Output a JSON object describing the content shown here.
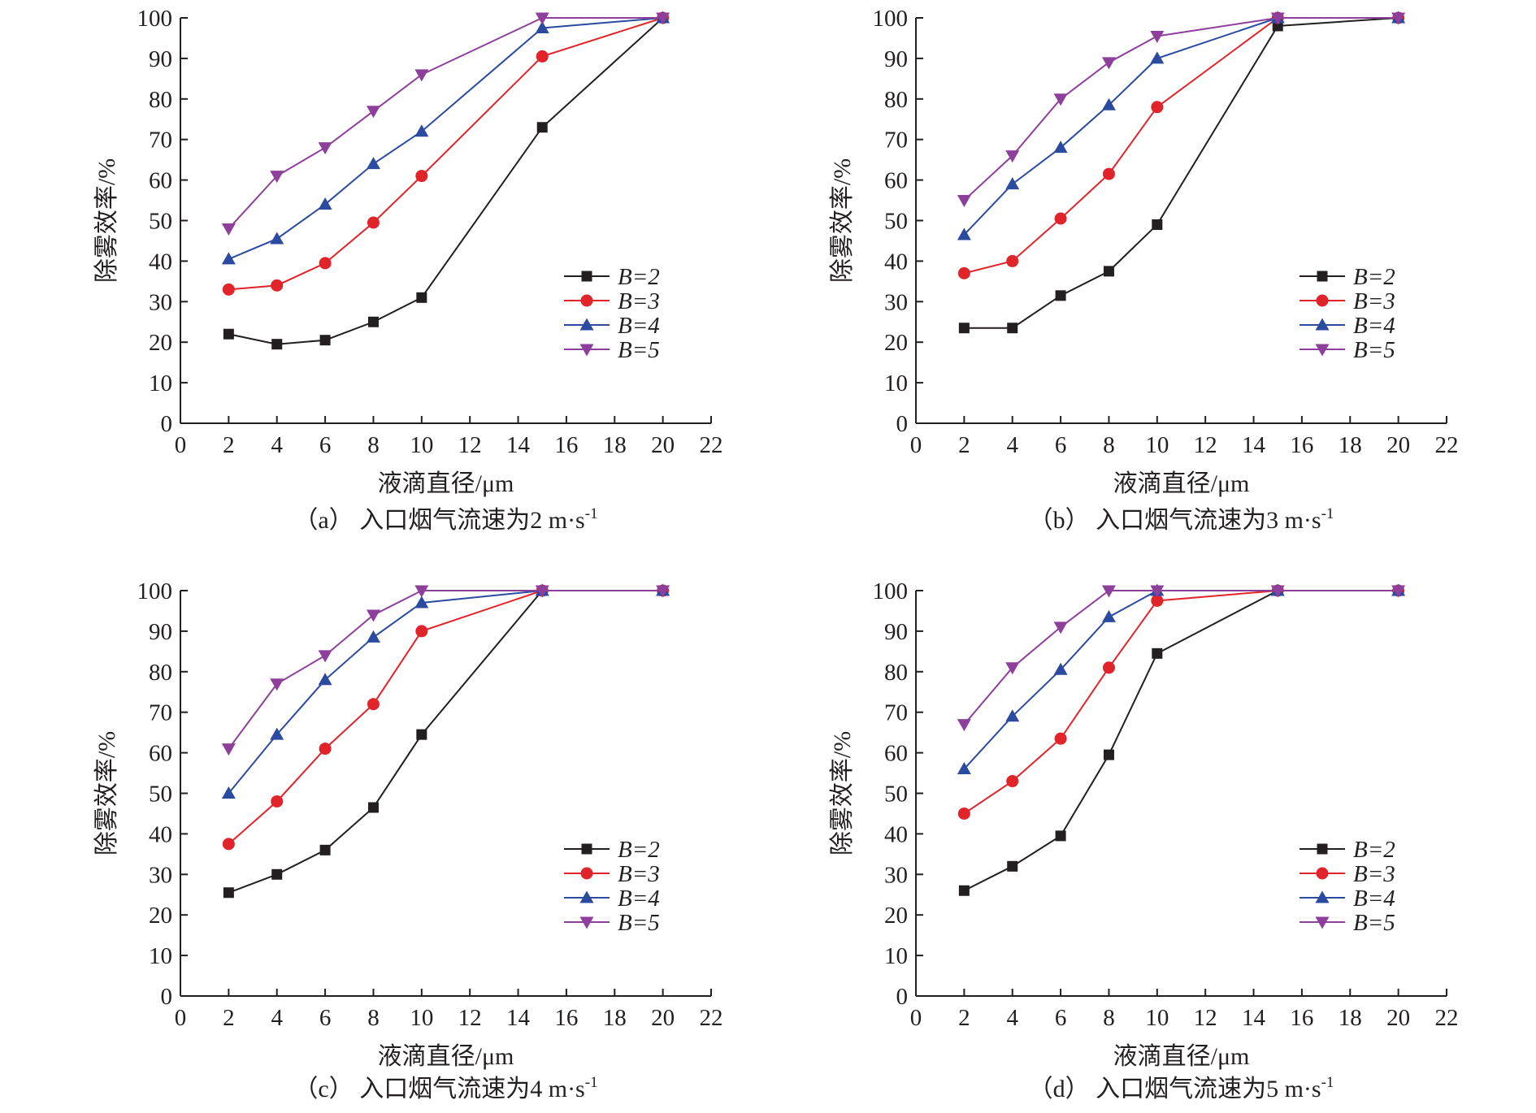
{
  "figure": {
    "panels": [
      {
        "caption": "（a） 入口烟气流速为2 m·s",
        "caption_sup": "-1",
        "chart_data": {
          "type": "line",
          "xlabel": "液滴直径/μm",
          "ylabel": "除雾效率/%",
          "xlim": [
            0,
            22
          ],
          "ylim": [
            0,
            100
          ],
          "xticks": [
            0,
            2,
            4,
            6,
            8,
            10,
            12,
            14,
            16,
            18,
            20,
            22
          ],
          "yticks": [
            0,
            10,
            20,
            30,
            40,
            50,
            60,
            70,
            80,
            90,
            100
          ],
          "grid": false,
          "legend_position": "right",
          "x": [
            2,
            4,
            6,
            8,
            10,
            15,
            20
          ],
          "series": [
            {
              "name": "B=2",
              "values": [
                22,
                19.5,
                20.5,
                25,
                31,
                73,
                100
              ],
              "color": "#231f20",
              "marker": "square"
            },
            {
              "name": "B=3",
              "values": [
                33,
                34,
                39.5,
                49.5,
                61,
                90.5,
                100
              ],
              "color": "#e1232a",
              "marker": "circle"
            },
            {
              "name": "B=4",
              "values": [
                40.5,
                45.5,
                54,
                64,
                72,
                97.5,
                100
              ],
              "color": "#2b4ba0",
              "marker": "triangle-up"
            },
            {
              "name": "B=5",
              "values": [
                48,
                61,
                68,
                77,
                86,
                100,
                100
              ],
              "color": "#8e3f9c",
              "marker": "triangle-down"
            }
          ]
        }
      },
      {
        "caption": "（b） 入口烟气流速为3 m·s",
        "caption_sup": "-1",
        "chart_data": {
          "type": "line",
          "xlabel": "液滴直径/μm",
          "ylabel": "除雾效率/%",
          "xlim": [
            0,
            22
          ],
          "ylim": [
            0,
            100
          ],
          "xticks": [
            0,
            2,
            4,
            6,
            8,
            10,
            12,
            14,
            16,
            18,
            20,
            22
          ],
          "yticks": [
            0,
            10,
            20,
            30,
            40,
            50,
            60,
            70,
            80,
            90,
            100
          ],
          "grid": false,
          "legend_position": "right",
          "x": [
            2,
            4,
            6,
            8,
            10,
            15,
            20
          ],
          "series": [
            {
              "name": "B=2",
              "values": [
                23.5,
                23.5,
                31.5,
                37.5,
                49,
                98,
                100
              ],
              "color": "#231f20",
              "marker": "square"
            },
            {
              "name": "B=3",
              "values": [
                37,
                40,
                50.5,
                61.5,
                78,
                100,
                100
              ],
              "color": "#e1232a",
              "marker": "circle"
            },
            {
              "name": "B=4",
              "values": [
                46.5,
                59,
                68,
                78.5,
                90,
                100,
                100
              ],
              "color": "#2b4ba0",
              "marker": "triangle-up"
            },
            {
              "name": "B=5",
              "values": [
                55,
                66,
                80,
                89,
                95.5,
                100,
                100
              ],
              "color": "#8e3f9c",
              "marker": "triangle-down"
            }
          ]
        }
      },
      {
        "caption": "（c） 入口烟气流速为4 m·s",
        "caption_sup": "-1",
        "chart_data": {
          "type": "line",
          "xlabel": "液滴直径/μm",
          "ylabel": "除雾效率/%",
          "xlim": [
            0,
            22
          ],
          "ylim": [
            0,
            100
          ],
          "xticks": [
            0,
            2,
            4,
            6,
            8,
            10,
            12,
            14,
            16,
            18,
            20,
            22
          ],
          "yticks": [
            0,
            10,
            20,
            30,
            40,
            50,
            60,
            70,
            80,
            90,
            100
          ],
          "grid": false,
          "legend_position": "right",
          "x": [
            2,
            4,
            6,
            8,
            10,
            15,
            20
          ],
          "series": [
            {
              "name": "B=2",
              "values": [
                25.5,
                30,
                36,
                46.5,
                64.5,
                100,
                100
              ],
              "color": "#231f20",
              "marker": "square"
            },
            {
              "name": "B=3",
              "values": [
                37.5,
                48,
                61,
                72,
                90,
                100,
                100
              ],
              "color": "#e1232a",
              "marker": "circle"
            },
            {
              "name": "B=4",
              "values": [
                50,
                64.5,
                78,
                88.5,
                97,
                100,
                100
              ],
              "color": "#2b4ba0",
              "marker": "triangle-up"
            },
            {
              "name": "B=5",
              "values": [
                61,
                77,
                84,
                94,
                100,
                100,
                100
              ],
              "color": "#8e3f9c",
              "marker": "triangle-down"
            }
          ]
        }
      },
      {
        "caption": "（d） 入口烟气流速为5 m·s",
        "caption_sup": "-1",
        "chart_data": {
          "type": "line",
          "xlabel": "液滴直径/μm",
          "ylabel": "除雾效率/%",
          "xlim": [
            0,
            22
          ],
          "ylim": [
            0,
            100
          ],
          "xticks": [
            0,
            2,
            4,
            6,
            8,
            10,
            12,
            14,
            16,
            18,
            20,
            22
          ],
          "yticks": [
            0,
            10,
            20,
            30,
            40,
            50,
            60,
            70,
            80,
            90,
            100
          ],
          "grid": false,
          "legend_position": "right",
          "x": [
            2,
            4,
            6,
            8,
            10,
            15,
            20
          ],
          "series": [
            {
              "name": "B=2",
              "values": [
                26,
                32,
                39.5,
                59.5,
                84.5,
                100,
                100
              ],
              "color": "#231f20",
              "marker": "square"
            },
            {
              "name": "B=3",
              "values": [
                45,
                53,
                63.5,
                81,
                97.5,
                100,
                100
              ],
              "color": "#e1232a",
              "marker": "circle"
            },
            {
              "name": "B=4",
              "values": [
                56,
                69,
                80.5,
                93.5,
                100,
                100,
                100
              ],
              "color": "#2b4ba0",
              "marker": "triangle-up"
            },
            {
              "name": "B=5",
              "values": [
                67,
                81,
                91,
                100,
                100,
                100,
                100
              ],
              "color": "#8e3f9c",
              "marker": "triangle-down"
            }
          ]
        }
      }
    ]
  }
}
